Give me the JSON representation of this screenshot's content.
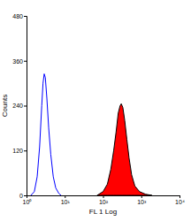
{
  "chart_data": {
    "type": "line",
    "x_label": "FL 1 Log",
    "y_label": "Counts",
    "log": "x",
    "grid": false,
    "xlim": [
      1,
      10000
    ],
    "xticks": [
      {
        "value": 1,
        "label": "10⁰"
      },
      {
        "value": 10,
        "label": "10¹"
      },
      {
        "value": 100,
        "label": "10²"
      },
      {
        "value": 1000,
        "label": "10³"
      },
      {
        "value": 10000,
        "label": "10⁴"
      }
    ],
    "ylim": [
      0,
      480
    ],
    "yticks": [
      0,
      120,
      240,
      360,
      480
    ],
    "series": [
      {
        "type": "line",
        "color": "#0000ff",
        "x": [
          1.3,
          1.6,
          1.9,
          2.2,
          2.5,
          2.7,
          2.9,
          3.1,
          3.4,
          3.8,
          4.3,
          5.0,
          5.8,
          7.0,
          8.0
        ],
        "values": [
          0,
          10,
          50,
          130,
          240,
          300,
          325,
          315,
          260,
          180,
          110,
          50,
          20,
          5,
          0
        ]
      },
      {
        "type": "area",
        "color": "#ff0000",
        "x": [
          70,
          100,
          130,
          160,
          190,
          220,
          250,
          280,
          300,
          330,
          370,
          420,
          480,
          560,
          680,
          900,
          1300,
          1900
        ],
        "values": [
          0,
          10,
          30,
          70,
          120,
          170,
          220,
          240,
          245,
          235,
          200,
          150,
          100,
          55,
          25,
          10,
          3,
          0
        ]
      }
    ]
  }
}
